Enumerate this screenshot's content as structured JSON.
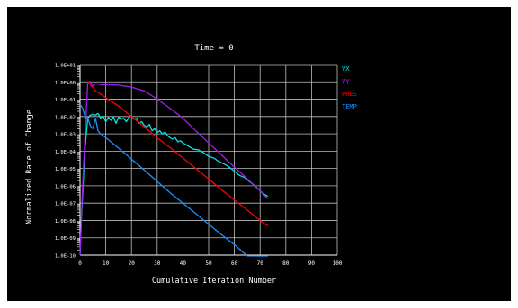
{
  "chart_data": {
    "type": "line",
    "title": "Time = 0",
    "xlabel": "Cumulative Iteration Number",
    "ylabel": "Normalized Rate of Change",
    "xlim": [
      0,
      100
    ],
    "ylim_exp": [
      -10,
      1
    ],
    "yscale": "log",
    "grid": true,
    "legend_position": "right",
    "x_ticks": [
      "0",
      "10",
      "20",
      "30",
      "40",
      "50",
      "60",
      "70",
      "80",
      "90",
      "100"
    ],
    "y_ticks": [
      "1.0E-10",
      "1.0E-09",
      "1.0E-08",
      "1.0E-07",
      "1.0E-06",
      "1.0E-05",
      "1.0E-04",
      "1.0E-03",
      "1.0E-02",
      "1.0E-01",
      "1.0E+00",
      "1.0E+01"
    ],
    "series": [
      {
        "name": "VX",
        "color": "#00e5e5",
        "x": [
          0,
          0.5,
          1,
          1.5,
          2,
          3,
          4,
          5,
          6,
          7,
          8,
          9,
          10,
          11,
          12,
          13,
          14,
          15,
          16,
          17,
          18,
          19,
          20,
          21,
          22,
          23,
          24,
          25,
          26,
          27,
          28,
          29,
          30,
          31,
          32,
          33,
          34,
          35,
          36,
          37,
          38,
          39,
          40,
          42,
          44,
          46,
          48,
          50,
          52,
          54,
          56,
          58,
          60,
          62,
          64,
          66,
          68,
          70,
          72,
          73
        ],
        "y": [
          1e-10,
          1e-08,
          3e-07,
          1e-05,
          0.0002,
          0.008,
          0.012,
          0.013,
          0.012,
          0.015,
          0.008,
          0.011,
          0.005,
          0.009,
          0.006,
          0.01,
          0.004,
          0.009,
          0.007,
          0.008,
          0.005,
          0.009,
          0.011,
          0.007,
          0.008,
          0.004,
          0.005,
          0.003,
          0.0025,
          0.0035,
          0.0015,
          0.002,
          0.0012,
          0.0015,
          0.001,
          0.0013,
          0.0008,
          0.0006,
          0.0005,
          0.0006,
          0.00035,
          0.0004,
          0.0003,
          0.0002,
          0.00013,
          0.00012,
          8e-05,
          5e-05,
          4e-05,
          2.5e-05,
          1.8e-05,
          1.2e-05,
          7e-06,
          4e-06,
          3e-06,
          1.7e-06,
          1e-06,
          5e-07,
          3e-07,
          2.5e-07
        ]
      },
      {
        "name": "VY",
        "color": "#a020f0",
        "x": [
          0,
          0.5,
          1,
          2,
          3,
          4,
          5,
          6,
          8,
          10,
          15,
          20,
          25,
          30,
          35,
          40,
          45,
          50,
          55,
          60,
          65,
          70,
          72,
          73
        ],
        "y": [
          1e-10,
          1e-08,
          1e-06,
          0.001,
          1,
          1,
          0.6,
          0.8,
          0.7,
          0.7,
          0.65,
          0.5,
          0.3,
          0.1,
          0.03,
          0.008,
          0.0015,
          0.0003,
          6e-05,
          1.2e-05,
          2.5e-06,
          5e-07,
          2.5e-07,
          1.8e-07
        ]
      },
      {
        "name": "PRES",
        "color": "#ff0000",
        "x": [
          3,
          4,
          5,
          6,
          7,
          10,
          15,
          20,
          25,
          30,
          35,
          40,
          45,
          50,
          55,
          60,
          65,
          70,
          72,
          73
        ],
        "y": [
          1,
          0.7,
          0.5,
          0.3,
          0.25,
          0.12,
          0.04,
          0.01,
          0.0025,
          0.0006,
          0.00016,
          4e-05,
          1e-05,
          2.5e-06,
          6e-07,
          1.5e-07,
          4e-08,
          1e-08,
          6e-09,
          5e-09
        ]
      },
      {
        "name": "TEMP",
        "color": "#1e90ff",
        "x": [
          0,
          0.5,
          1,
          2,
          3,
          4,
          5,
          6,
          7,
          8,
          10,
          15,
          20,
          25,
          30,
          35,
          40,
          45,
          50,
          55,
          60,
          65,
          70,
          72,
          73
        ],
        "y": [
          0.05,
          0.04,
          0.03,
          0.01,
          0.008,
          0.003,
          0.002,
          0.008,
          0.0015,
          0.001,
          0.0006,
          0.00015,
          3.5e-05,
          8e-06,
          1.8e-06,
          4e-07,
          1e-07,
          2.5e-08,
          6e-09,
          1.5e-09,
          4e-10,
          9e-11,
          2.5e-11,
          1.5e-11,
          1.2e-11
        ]
      }
    ]
  }
}
